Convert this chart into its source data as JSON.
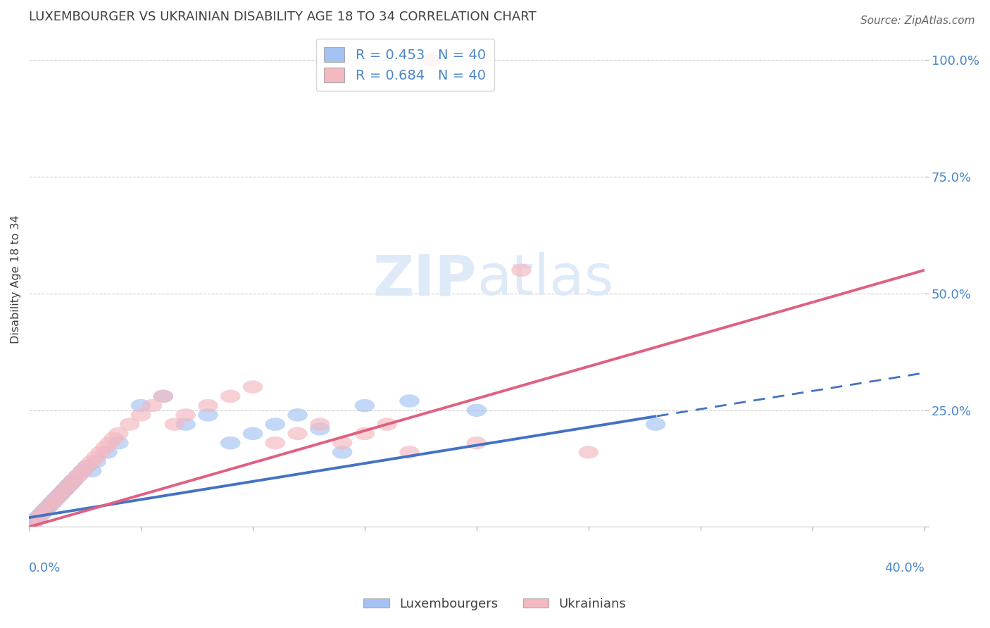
{
  "title": "LUXEMBOURGER VS UKRAINIAN DISABILITY AGE 18 TO 34 CORRELATION CHART",
  "source": "Source: ZipAtlas.com",
  "lux_color": "#a4c2f4",
  "ukr_color": "#f4b8c1",
  "lux_line_color": "#4472c4",
  "ukr_line_color": "#e06080",
  "lux_legend": "R = 0.453   N = 40",
  "ukr_legend": "R = 0.684   N = 40",
  "axis_color": "#4a86c8",
  "grid_color": "#cccccc",
  "bg_color": "#ffffff",
  "text_color": "#404040",
  "source_color": "#666666",
  "xlim": [
    0,
    40
  ],
  "ylim": [
    0,
    106
  ],
  "yticks": [
    0,
    25,
    50,
    75,
    100
  ],
  "ylabel": "Disability Age 18 to 34",
  "watermark_color": "#dce8f8",
  "lux_x": [
    0.2,
    0.3,
    0.4,
    0.5,
    0.6,
    0.7,
    0.8,
    0.9,
    1.0,
    1.1,
    1.2,
    1.3,
    1.4,
    1.5,
    1.6,
    1.7,
    1.8,
    1.9,
    2.0,
    2.2,
    2.4,
    2.6,
    2.8,
    3.0,
    3.5,
    4.0,
    5.0,
    6.0,
    7.0,
    8.0,
    9.0,
    10.0,
    11.0,
    12.0,
    13.0,
    14.0,
    15.0,
    17.0,
    20.0,
    28.0
  ],
  "lux_y": [
    1.0,
    1.5,
    2.0,
    2.5,
    3.0,
    3.5,
    4.0,
    4.5,
    5.0,
    5.5,
    6.0,
    6.5,
    7.0,
    7.5,
    8.0,
    8.5,
    9.0,
    9.5,
    10.0,
    11.0,
    12.0,
    13.0,
    12.0,
    14.0,
    16.0,
    18.0,
    26.0,
    28.0,
    22.0,
    24.0,
    18.0,
    20.0,
    22.0,
    24.0,
    21.0,
    16.0,
    26.0,
    27.0,
    25.0,
    22.0
  ],
  "ukr_x": [
    0.2,
    0.4,
    0.6,
    0.8,
    1.0,
    1.2,
    1.4,
    1.6,
    1.8,
    2.0,
    2.2,
    2.4,
    2.6,
    2.8,
    3.0,
    3.2,
    3.4,
    3.6,
    3.8,
    4.0,
    4.5,
    5.0,
    5.5,
    6.0,
    6.5,
    7.0,
    8.0,
    9.0,
    10.0,
    11.0,
    12.0,
    13.0,
    14.0,
    15.0,
    16.0,
    17.0,
    18.0,
    20.0,
    22.0,
    25.0
  ],
  "ukr_y": [
    1.0,
    2.0,
    3.0,
    4.0,
    5.0,
    6.0,
    7.0,
    8.0,
    9.0,
    10.0,
    11.0,
    12.0,
    13.0,
    14.0,
    15.0,
    16.0,
    17.0,
    18.0,
    19.0,
    20.0,
    22.0,
    24.0,
    26.0,
    28.0,
    22.0,
    24.0,
    26.0,
    28.0,
    30.0,
    18.0,
    20.0,
    22.0,
    18.0,
    20.0,
    22.0,
    16.0,
    100.0,
    18.0,
    55.0,
    16.0
  ],
  "lux_reg_x0": 0,
  "lux_reg_y0": 2.0,
  "lux_reg_x1": 40,
  "lux_reg_y1": 33.0,
  "lux_solid_end": 28.0,
  "ukr_reg_x0": 0,
  "ukr_reg_y0": 0.0,
  "ukr_reg_x1": 40,
  "ukr_reg_y1": 55.0,
  "ukr_solid_end": 40.0
}
